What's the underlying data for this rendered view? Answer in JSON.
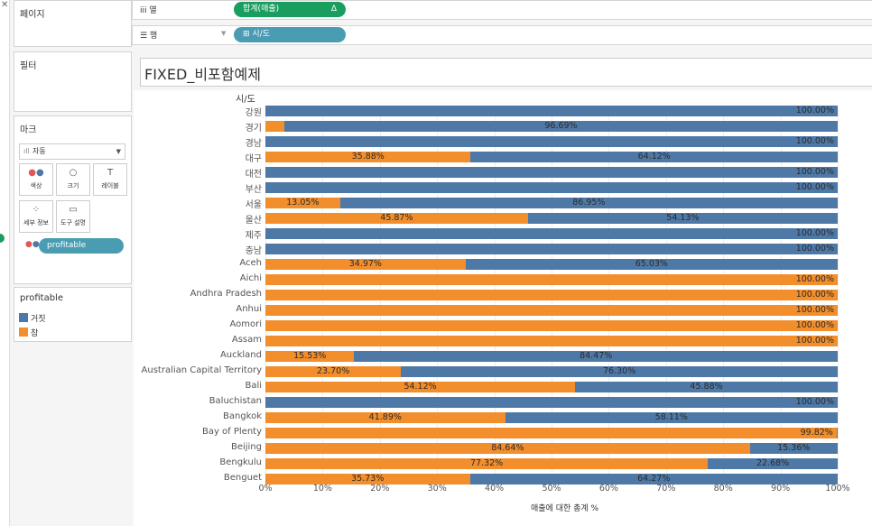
{
  "colors": {
    "false": "#4e79a7",
    "true": "#f28e2b",
    "pill_green": "#1a9e5f",
    "pill_blue": "#4a9cb3"
  },
  "pages": {
    "title": "페이지"
  },
  "filters": {
    "title": "필터"
  },
  "marks": {
    "title": "마크",
    "type": "자동",
    "buttons": [
      "색상",
      "크기",
      "레이블",
      "세부 정보",
      "도구 설명"
    ],
    "field_pill": "profitable"
  },
  "legend": {
    "title": "profitable",
    "items": [
      {
        "label": "거짓",
        "color": "#4e79a7"
      },
      {
        "label": "참",
        "color": "#f28e2b"
      }
    ]
  },
  "shelves": {
    "columns": {
      "name": "iii 열",
      "pill": "합계(매출)",
      "pill_icon": "Δ"
    },
    "rows": {
      "name": "☰ 행",
      "pill": "⊞ 시/도"
    }
  },
  "view": {
    "title": "FIXED_비포함예제"
  },
  "chart_data": {
    "type": "bar",
    "orientation": "horizontal",
    "stacked": true,
    "row_header": "시/도",
    "xlabel": "매출에 대한 총계 %",
    "xlim": [
      0,
      100
    ],
    "x_ticks": [
      "0%",
      "10%",
      "20%",
      "30%",
      "40%",
      "50%",
      "60%",
      "70%",
      "80%",
      "90%",
      "100%"
    ],
    "categories": [
      "강원",
      "경기",
      "경남",
      "대구",
      "대전",
      "부산",
      "서울",
      "울산",
      "제주",
      "충남",
      "Aceh",
      "Aichi",
      "Andhra Pradesh",
      "Anhui",
      "Aomori",
      "Assam",
      "Auckland",
      "Australian Capital Territory",
      "Bali",
      "Baluchistan",
      "Bangkok",
      "Bay of Plenty",
      "Beijing",
      "Bengkulu",
      "Benguet"
    ],
    "series": [
      {
        "name": "참",
        "values": [
          0,
          3.31,
          0,
          35.88,
          0,
          0,
          13.05,
          45.87,
          0,
          0,
          34.97,
          100,
          100,
          100,
          100,
          100,
          15.53,
          23.7,
          54.12,
          0,
          41.89,
          99.82,
          84.64,
          77.32,
          35.73
        ]
      },
      {
        "name": "거짓",
        "values": [
          100,
          96.69,
          100,
          64.12,
          100,
          100,
          86.95,
          54.13,
          100,
          100,
          65.03,
          0,
          0,
          0,
          0,
          0,
          84.47,
          76.3,
          45.88,
          100,
          58.11,
          0.18,
          15.36,
          22.68,
          64.27
        ]
      }
    ],
    "labels_true": [
      "",
      "",
      "",
      "35.88%",
      "",
      "",
      "13.05%",
      "45.87%",
      "",
      "",
      "34.97%",
      "100.00%",
      "100.00%",
      "100.00%",
      "100.00%",
      "100.00%",
      "15.53%",
      "23.70%",
      "54.12%",
      "",
      "41.89%",
      "99.82%",
      "84.64%",
      "77.32%",
      "35.73%"
    ],
    "labels_false": [
      "100.00%",
      "96.69%",
      "100.00%",
      "64.12%",
      "100.00%",
      "100.00%",
      "86.95%",
      "54.13%",
      "100.00%",
      "100.00%",
      "65.03%",
      "",
      "",
      "",
      "",
      "",
      "84.47%",
      "76.30%",
      "45.88%",
      "100.00%",
      "58.11%",
      "",
      "15.36%",
      "22.68%",
      "64.27%"
    ]
  }
}
